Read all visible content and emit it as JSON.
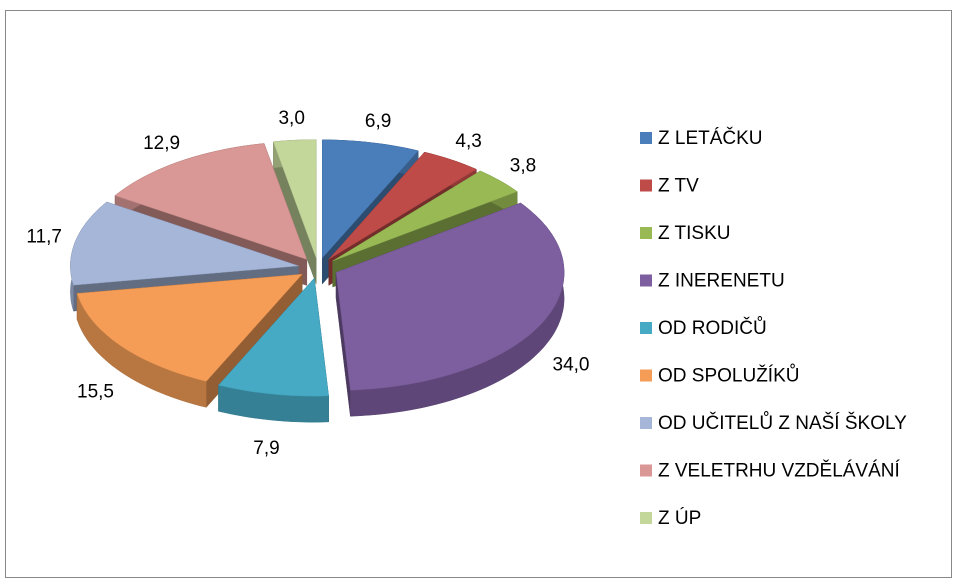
{
  "chart_data": {
    "type": "pie",
    "categories": [
      "Z LETÁČKU",
      "Z TV",
      "Z TISKU",
      "Z INERENETU",
      "OD RODIČŮ",
      "OD SPOLUŽÍKŮ",
      "OD UČITELŮ Z NAŠÍ ŠKOLY",
      "Z VELETRHU VZDĚLÁVÁNÍ",
      "Z ÚP"
    ],
    "values": [
      6.9,
      4.3,
      3.8,
      34.0,
      7.9,
      15.5,
      11.7,
      12.9,
      3.0
    ],
    "value_labels": [
      "6,9",
      "4,3",
      "3,8",
      "34,0",
      "7,9",
      "15,5",
      "11,7",
      "12,9",
      "3,0"
    ],
    "colors": [
      "#4a7ebb",
      "#be4b48",
      "#98b954",
      "#7d5fa0",
      "#46aac5",
      "#f59d56",
      "#a5b6d9",
      "#d99795",
      "#c4d79b"
    ],
    "legend": "right"
  }
}
